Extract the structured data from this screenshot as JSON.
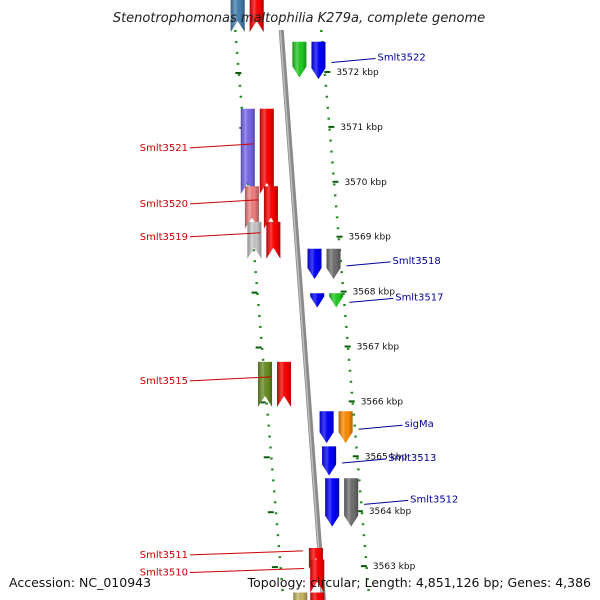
{
  "title": "Stenotrophomonas maltophilia K279a, complete genome",
  "footer": {
    "accession": "Accession: NC_010943",
    "summary": "Topology: circular; Length: 4,851,126 bp; Genes: 4,386"
  },
  "ruler": [
    {
      "label": "3572 kbp",
      "kb": 3572
    },
    {
      "label": "3571 kbp",
      "kb": 3571
    },
    {
      "label": "3570 kbp",
      "kb": 3570
    },
    {
      "label": "3569 kbp",
      "kb": 3569
    },
    {
      "label": "3568 kbp",
      "kb": 3568
    },
    {
      "label": "3567 kbp",
      "kb": 3567
    },
    {
      "label": "3566 kbp",
      "kb": 3566
    },
    {
      "label": "3565 kbp",
      "kb": 3565
    },
    {
      "label": "3564 kbp",
      "kb": 3564
    },
    {
      "label": "3563 kbp",
      "kb": 3563
    }
  ],
  "genes": [
    {
      "id": "top-left",
      "label": "",
      "strand": "minus",
      "start_kb": 3573.35,
      "end_kb": 3572.93,
      "color": "#4682b4"
    },
    {
      "id": "top-right",
      "label": "",
      "strand": "minus",
      "start_kb": 3573.35,
      "end_kb": 3572.93,
      "color": "#ff0000"
    },
    {
      "id": "Smlt3522",
      "label": "Smlt3522",
      "strand": "plus",
      "start_kb": 3572.55,
      "end_kb": 3571.87,
      "color": "#0000ff"
    },
    {
      "id": "Smlt3522-partner",
      "label": "",
      "strand": "plus",
      "start_kb": 3572.55,
      "end_kb": 3571.9,
      "color": "#22cc22"
    },
    {
      "id": "Smlt3521-partner",
      "label": "",
      "strand": "minus",
      "start_kb": 3571.33,
      "end_kb": 3569.98,
      "color": "#7b68ee"
    },
    {
      "id": "Smlt3521",
      "label": "Smlt3521",
      "strand": "minus",
      "start_kb": 3571.33,
      "end_kb": 3569.98,
      "color": "#ff0000"
    },
    {
      "id": "Smlt3520-partner",
      "label": "",
      "strand": "minus",
      "start_kb": 3569.92,
      "end_kb": 3569.35,
      "color": "#f08080"
    },
    {
      "id": "Smlt3520",
      "label": "Smlt3520",
      "strand": "minus",
      "start_kb": 3569.92,
      "end_kb": 3569.35,
      "color": "#ff0000"
    },
    {
      "id": "Smlt3519-partner",
      "label": "",
      "strand": "minus",
      "start_kb": 3569.27,
      "end_kb": 3568.8,
      "color": "#c8c8c8"
    },
    {
      "id": "Smlt3519",
      "label": "Smlt3519",
      "strand": "minus",
      "start_kb": 3569.27,
      "end_kb": 3568.8,
      "color": "#ff0000"
    },
    {
      "id": "Smlt3518-partner",
      "label": "",
      "strand": "plus",
      "start_kb": 3568.78,
      "end_kb": 3568.23,
      "color": "#0000ff"
    },
    {
      "id": "Smlt3518",
      "label": "Smlt3518",
      "strand": "plus",
      "start_kb": 3568.78,
      "end_kb": 3568.23,
      "color": "#707070"
    },
    {
      "id": "Smlt3517-partner",
      "label": "",
      "strand": "plus",
      "start_kb": 3567.97,
      "end_kb": 3567.71,
      "color": "#0000ff"
    },
    {
      "id": "Smlt3517",
      "label": "Smlt3517",
      "strand": "plus",
      "start_kb": 3567.97,
      "end_kb": 3567.71,
      "color": "#22cc22"
    },
    {
      "id": "Smlt3515-partner",
      "label": "",
      "strand": "minus",
      "start_kb": 3566.72,
      "end_kb": 3566.1,
      "color": "#6b8e23"
    },
    {
      "id": "Smlt3515",
      "label": "Smlt3515",
      "strand": "minus",
      "start_kb": 3566.72,
      "end_kb": 3566.1,
      "color": "#ff0000"
    },
    {
      "id": "sigMa-partner",
      "label": "",
      "strand": "plus",
      "start_kb": 3565.82,
      "end_kb": 3565.24,
      "color": "#0000ff"
    },
    {
      "id": "sigMa",
      "label": "sigMa",
      "strand": "plus",
      "start_kb": 3565.82,
      "end_kb": 3565.24,
      "color": "#ff8c00"
    },
    {
      "id": "Smlt3513",
      "label": "Smlt3513",
      "strand": "plus",
      "start_kb": 3565.18,
      "end_kb": 3564.65,
      "color": "#0000ff"
    },
    {
      "id": "Smlt3512-partner",
      "label": "",
      "strand": "plus",
      "start_kb": 3564.6,
      "end_kb": 3563.72,
      "color": "#0000ff"
    },
    {
      "id": "Smlt3512",
      "label": "Smlt3512",
      "strand": "plus",
      "start_kb": 3564.6,
      "end_kb": 3563.72,
      "color": "#707070"
    },
    {
      "id": "Smlt3511",
      "label": "Smlt3511",
      "strand": "minus",
      "start_kb": 3563.33,
      "end_kb": 3563.15,
      "color": "#ff0000"
    },
    {
      "id": "Smlt3510",
      "label": "Smlt3510",
      "strand": "minus",
      "start_kb": 3563.12,
      "end_kb": 3562.72,
      "color": "#ff0000"
    },
    {
      "id": "bottom-left",
      "label": "",
      "strand": "minus",
      "start_kb": 3562.52,
      "end_kb": 3562.3,
      "color": "#c8b464"
    },
    {
      "id": "bottom-right",
      "label": "",
      "strand": "minus",
      "start_kb": 3562.52,
      "end_kb": 3562.3,
      "color": "#ff0000"
    }
  ]
}
